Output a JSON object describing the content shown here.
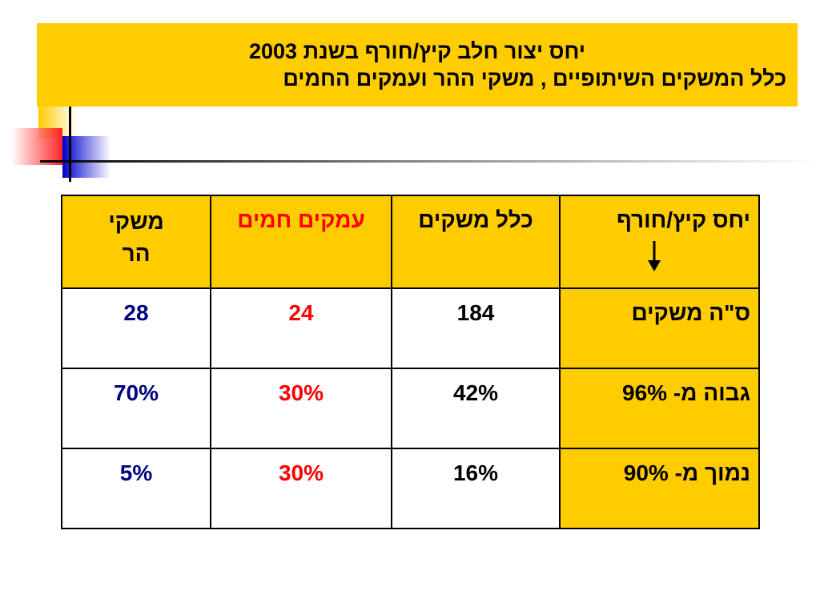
{
  "title": {
    "line1": "יחס יצור חלב קיץ/חורף בשנת 2003",
    "line2": "כלל המשקים השיתופיים , משקי ההר ועמקים החמים"
  },
  "table": {
    "headers": {
      "label": "יחס קיץ/חורף",
      "all": "כלל משקים",
      "valley": "עמקים חמים",
      "mountain_line1": "משקי",
      "mountain_line2": "הר"
    },
    "rows": [
      {
        "label": "ס\"ה משקים",
        "all": "184",
        "valley": "24",
        "mountain": "28"
      },
      {
        "label": "גבוה מ- 96%",
        "all": "42%",
        "valley": "30%",
        "mountain": "70%"
      },
      {
        "label": "נמוך מ- 90%",
        "all": "16%",
        "valley": "30%",
        "mountain": "5%"
      }
    ]
  },
  "colors": {
    "accent": "#FFCC00",
    "valley_text": "#FF0000",
    "mountain_text": "#000080"
  },
  "icons": {
    "header_arrow": "arrow-down-icon"
  }
}
